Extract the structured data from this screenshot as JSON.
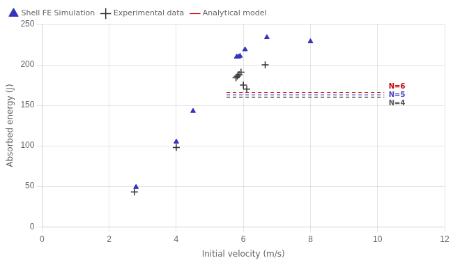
{
  "chart_data": {
    "type": "scatter",
    "xlabel": "Initial velocity (m/s)",
    "ylabel": "Absorbed energy (J)",
    "xlim": [
      0,
      12
    ],
    "xticks": [
      0,
      2,
      4,
      6,
      8,
      10,
      12
    ],
    "ylim": [
      0,
      250
    ],
    "yticks": [
      0,
      50,
      100,
      150,
      200,
      250
    ],
    "grid": true,
    "legend": "upper left",
    "series": [
      {
        "name": "Shell FE Simulation",
        "color": "#3333bb",
        "marker": "triangle",
        "x": [
          2.8,
          4.0,
          4.5,
          5.8,
          5.85,
          5.9,
          6.05,
          6.7,
          8.0
        ],
        "values": [
          49,
          105,
          143,
          210,
          210,
          211,
          219,
          234,
          229
        ]
      },
      {
        "name": "Experimental data",
        "color": "#333333",
        "marker": "plus",
        "x": [
          2.75,
          4.0,
          5.78,
          5.82,
          5.87,
          5.93,
          6.0,
          6.1,
          6.65
        ],
        "values": [
          43,
          98,
          184,
          186,
          188,
          191,
          175,
          170,
          200
        ]
      }
    ],
    "analytical_lines": {
      "name": "Analytical model",
      "line_style": "dashed",
      "x": [
        5.5,
        10.2
      ],
      "lines": [
        {
          "y": 166,
          "color": "#cc0000"
        },
        {
          "y": 163,
          "color": "#4444bb"
        },
        {
          "y": 160,
          "color": "#555555"
        }
      ]
    },
    "annotations": [
      {
        "text": "N=6",
        "x": 10.0,
        "y": 167,
        "color": "#cc0000"
      },
      {
        "text": "N=5",
        "x": 10.0,
        "y": 163,
        "color": "#4444bb"
      },
      {
        "text": "N=4",
        "x": 10.0,
        "y": 159,
        "color": "#555555"
      }
    ]
  }
}
